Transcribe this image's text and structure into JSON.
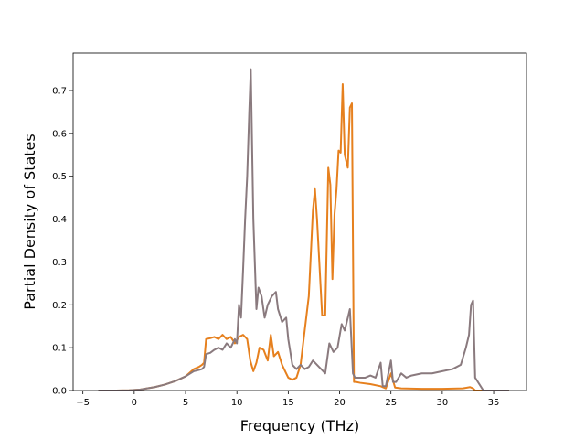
{
  "chart_data": {
    "type": "line",
    "title": "",
    "xlabel": "Frequency (THz)",
    "ylabel": "Partial Density of States",
    "xlim": [
      -5.95,
      38.2
    ],
    "ylim": [
      0.0,
      0.7875
    ],
    "xticks": [
      -5,
      0,
      5,
      10,
      15,
      20,
      25,
      30,
      35
    ],
    "yticks": [
      0.0,
      0.1,
      0.2,
      0.3,
      0.4,
      0.5,
      0.6,
      0.7
    ],
    "xtick_labels": [
      "−5",
      "0",
      "5",
      "10",
      "15",
      "20",
      "25",
      "30",
      "35"
    ],
    "ytick_labels": [
      "0.0",
      "0.1",
      "0.2",
      "0.3",
      "0.4",
      "0.5",
      "0.6",
      "0.7"
    ],
    "grid": false,
    "legend": "none",
    "series": [
      {
        "color": "#e6801e",
        "x": [
          -3.5,
          -2,
          -0.5,
          0.5,
          1.0,
          2.0,
          3.0,
          4.0,
          5.0,
          5.8,
          6.3,
          6.6,
          6.8,
          7.0,
          7.4,
          7.8,
          8.2,
          8.6,
          9.0,
          9.4,
          9.8,
          10.2,
          10.6,
          11.0,
          11.3,
          11.6,
          11.9,
          12.2,
          12.6,
          13.0,
          13.3,
          13.6,
          14.0,
          14.4,
          14.8,
          15.0,
          15.4,
          15.8,
          16.2,
          16.6,
          17.0,
          17.4,
          17.6,
          17.8,
          18.0,
          18.3,
          18.6,
          18.9,
          19.1,
          19.3,
          19.5,
          19.7,
          19.9,
          20.1,
          20.3,
          20.5,
          20.8,
          21.0,
          21.2,
          21.4,
          21.6,
          22.0,
          23.0,
          24.0,
          24.5,
          25.0,
          25.4,
          26.0,
          28.0,
          30.0,
          32.0,
          32.7,
          33.0,
          33.2,
          34.0,
          36.5
        ],
        "y": [
          0.0,
          0.0,
          0.0005,
          0.002,
          0.004,
          0.008,
          0.014,
          0.022,
          0.033,
          0.05,
          0.055,
          0.06,
          0.065,
          0.12,
          0.122,
          0.125,
          0.12,
          0.13,
          0.12,
          0.125,
          0.11,
          0.125,
          0.13,
          0.12,
          0.07,
          0.045,
          0.065,
          0.1,
          0.095,
          0.07,
          0.13,
          0.08,
          0.09,
          0.06,
          0.04,
          0.03,
          0.025,
          0.03,
          0.06,
          0.14,
          0.22,
          0.42,
          0.47,
          0.4,
          0.31,
          0.175,
          0.175,
          0.52,
          0.48,
          0.26,
          0.41,
          0.47,
          0.56,
          0.555,
          0.715,
          0.55,
          0.52,
          0.66,
          0.67,
          0.02,
          0.02,
          0.018,
          0.015,
          0.01,
          0.005,
          0.04,
          0.007,
          0.005,
          0.004,
          0.004,
          0.005,
          0.008,
          0.005,
          0.0,
          0.0,
          0.0
        ]
      },
      {
        "color": "#8a7a7e",
        "x": [
          -3.5,
          -2,
          -0.5,
          0.5,
          1.0,
          2.0,
          3.0,
          4.0,
          5.0,
          5.8,
          6.3,
          6.6,
          6.8,
          7.0,
          7.4,
          7.8,
          8.2,
          8.6,
          9.0,
          9.4,
          9.8,
          10.0,
          10.2,
          10.4,
          10.6,
          10.8,
          11.0,
          11.2,
          11.35,
          11.6,
          11.9,
          12.1,
          12.4,
          12.7,
          13.0,
          13.4,
          13.8,
          14.0,
          14.4,
          14.8,
          15.0,
          15.4,
          15.8,
          16.2,
          16.6,
          17.0,
          17.4,
          17.8,
          18.2,
          18.6,
          19.0,
          19.4,
          19.8,
          20.2,
          20.5,
          20.8,
          21.0,
          21.3,
          21.5,
          21.8,
          22.5,
          23.0,
          23.5,
          24.0,
          24.2,
          24.5,
          25.0,
          25.2,
          25.5,
          26.0,
          26.5,
          27.0,
          28.0,
          29.0,
          30.0,
          31.0,
          31.8,
          32.3,
          32.6,
          32.8,
          33.0,
          33.2,
          34.0,
          36.5
        ],
        "y": [
          0.0,
          0.0,
          0.0005,
          0.002,
          0.004,
          0.008,
          0.014,
          0.022,
          0.033,
          0.045,
          0.048,
          0.05,
          0.055,
          0.085,
          0.088,
          0.095,
          0.1,
          0.095,
          0.11,
          0.1,
          0.12,
          0.11,
          0.2,
          0.17,
          0.28,
          0.4,
          0.5,
          0.65,
          0.75,
          0.4,
          0.19,
          0.24,
          0.22,
          0.17,
          0.2,
          0.22,
          0.23,
          0.19,
          0.16,
          0.17,
          0.12,
          0.06,
          0.05,
          0.06,
          0.05,
          0.055,
          0.07,
          0.06,
          0.05,
          0.04,
          0.11,
          0.09,
          0.1,
          0.155,
          0.14,
          0.17,
          0.19,
          0.04,
          0.03,
          0.03,
          0.03,
          0.035,
          0.03,
          0.065,
          0.01,
          0.01,
          0.07,
          0.02,
          0.02,
          0.04,
          0.03,
          0.035,
          0.04,
          0.04,
          0.045,
          0.05,
          0.06,
          0.1,
          0.13,
          0.2,
          0.21,
          0.03,
          0.0,
          0.0
        ]
      }
    ]
  }
}
